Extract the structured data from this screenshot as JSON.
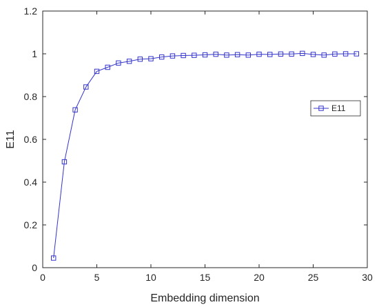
{
  "chart_data": {
    "type": "line",
    "title": "",
    "xlabel": "Embedding dimension",
    "ylabel": "E11",
    "xlim": [
      0,
      30
    ],
    "ylim": [
      0,
      1.2
    ],
    "xticks": [
      0,
      5,
      10,
      15,
      20,
      25,
      30
    ],
    "yticks": [
      0,
      0.2,
      0.4,
      0.6,
      0.8,
      1,
      1.2
    ],
    "xtick_labels": [
      "0",
      "5",
      "10",
      "15",
      "20",
      "25",
      "30"
    ],
    "ytick_labels": [
      "0",
      "0.2",
      "0.4",
      "0.6",
      "0.8",
      "1",
      "1.2"
    ],
    "grid": false,
    "legend_position": "right",
    "series": [
      {
        "name": "E11",
        "color": "#3333cc",
        "marker": "square",
        "x": [
          1,
          2,
          3,
          4,
          5,
          6,
          7,
          8,
          9,
          10,
          11,
          12,
          13,
          14,
          15,
          16,
          17,
          18,
          19,
          20,
          21,
          22,
          23,
          24,
          25,
          26,
          27,
          28,
          29
        ],
        "y": [
          0.045,
          0.495,
          0.738,
          0.845,
          0.918,
          0.937,
          0.957,
          0.965,
          0.975,
          0.977,
          0.985,
          0.99,
          0.992,
          0.993,
          0.995,
          0.998,
          0.994,
          0.996,
          0.994,
          0.998,
          0.997,
          0.999,
          0.999,
          1.002,
          0.997,
          0.994,
          0.999,
          1.0,
          1.0
        ]
      }
    ]
  }
}
